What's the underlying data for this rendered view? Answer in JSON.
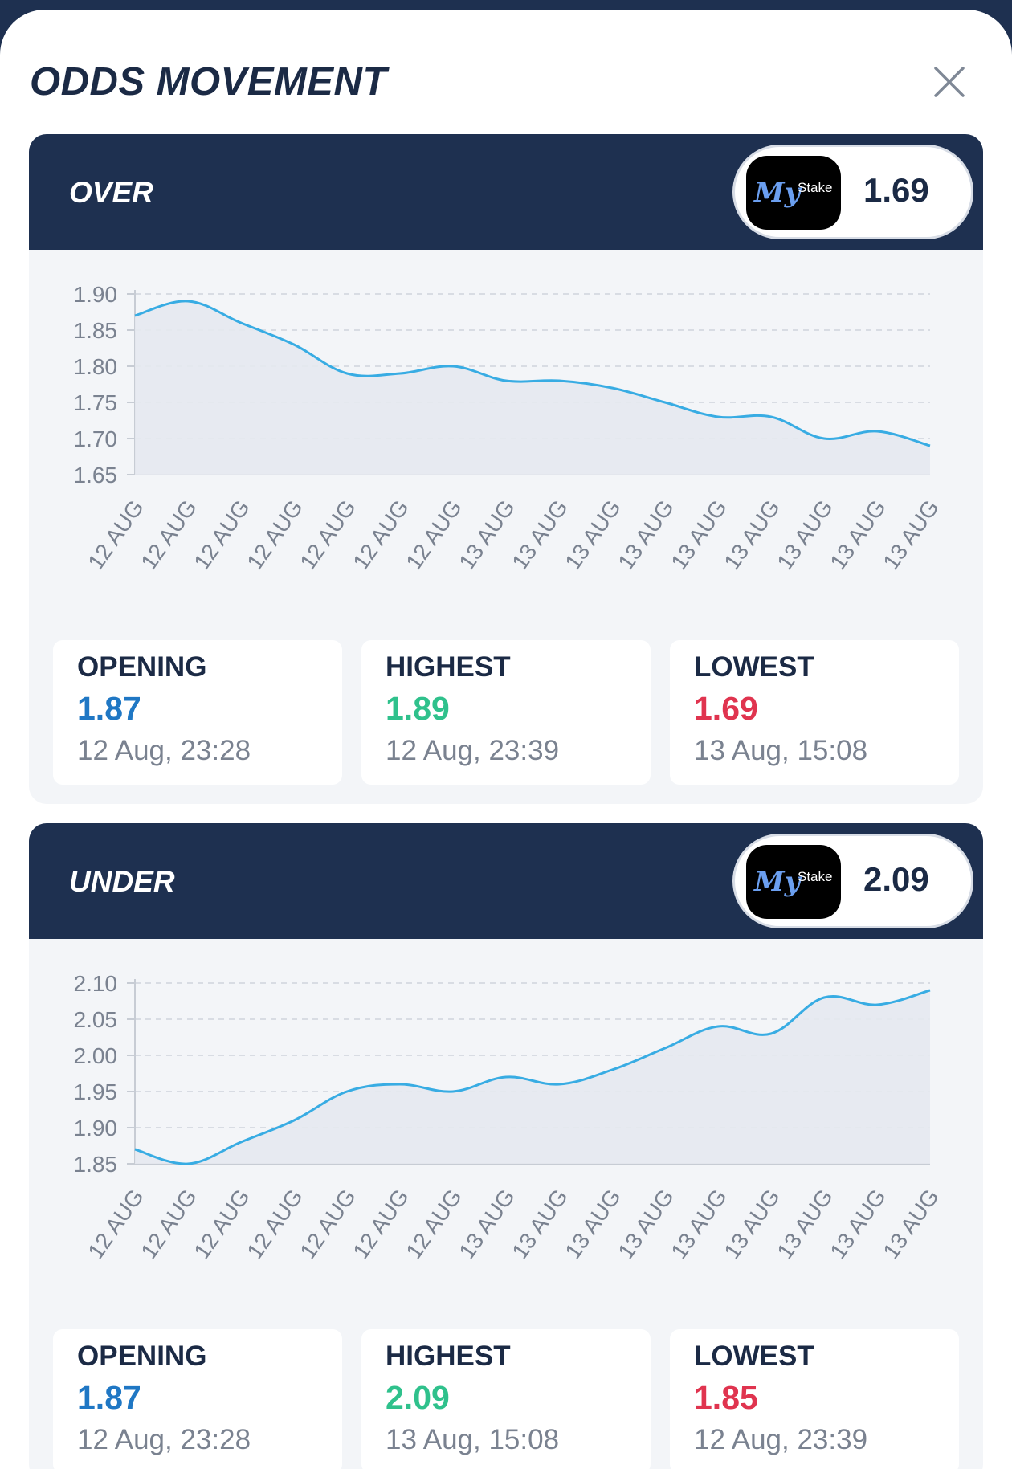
{
  "title": "ODDS MOVEMENT",
  "colors": {
    "navy": "#1e3050",
    "opening": "#1f77c4",
    "highest": "#2fc18c",
    "lowest": "#e0344f",
    "line": "#38ace3",
    "fill": "#e6e9f0"
  },
  "bookmaker": {
    "logo_text": "MyStake",
    "logo_main": "My",
    "logo_sub": "Stake"
  },
  "panels": [
    {
      "label": "OVER",
      "odds": "1.69",
      "stats": {
        "opening": {
          "label": "OPENING",
          "value": "1.87",
          "time": "12 Aug, 23:28"
        },
        "highest": {
          "label": "HIGHEST",
          "value": "1.89",
          "time": "12 Aug, 23:39"
        },
        "lowest": {
          "label": "LOWEST",
          "value": "1.69",
          "time": "13 Aug, 15:08"
        }
      }
    },
    {
      "label": "UNDER",
      "odds": "2.09",
      "stats": {
        "opening": {
          "label": "OPENING",
          "value": "1.87",
          "time": "12 Aug, 23:28"
        },
        "highest": {
          "label": "HIGHEST",
          "value": "2.09",
          "time": "13 Aug, 15:08"
        },
        "lowest": {
          "label": "LOWEST",
          "value": "1.85",
          "time": "12 Aug, 23:39"
        }
      }
    }
  ],
  "chart_data": [
    {
      "type": "area",
      "title": "",
      "xlabel": "",
      "ylabel": "",
      "grid": true,
      "ylim": [
        1.65,
        1.9
      ],
      "yticks": [
        "1.90",
        "1.85",
        "1.80",
        "1.75",
        "1.70",
        "1.65"
      ],
      "categories": [
        "12 AUG",
        "12 AUG",
        "12 AUG",
        "12 AUG",
        "12 AUG",
        "12 AUG",
        "12 AUG",
        "13 AUG",
        "13 AUG",
        "13 AUG",
        "13 AUG",
        "13 AUG",
        "13 AUG",
        "13 AUG",
        "13 AUG",
        "13 AUG"
      ],
      "values": [
        1.87,
        1.89,
        1.86,
        1.83,
        1.79,
        1.79,
        1.8,
        1.78,
        1.78,
        1.77,
        1.75,
        1.73,
        1.73,
        1.7,
        1.71,
        1.69
      ]
    },
    {
      "type": "area",
      "title": "",
      "xlabel": "",
      "ylabel": "",
      "grid": true,
      "ylim": [
        1.85,
        2.1
      ],
      "yticks": [
        "2.10",
        "2.05",
        "2.00",
        "1.95",
        "1.90",
        "1.85"
      ],
      "categories": [
        "12 AUG",
        "12 AUG",
        "12 AUG",
        "12 AUG",
        "12 AUG",
        "12 AUG",
        "12 AUG",
        "13 AUG",
        "13 AUG",
        "13 AUG",
        "13 AUG",
        "13 AUG",
        "13 AUG",
        "13 AUG",
        "13 AUG",
        "13 AUG"
      ],
      "values": [
        1.87,
        1.85,
        1.88,
        1.91,
        1.95,
        1.96,
        1.95,
        1.97,
        1.96,
        1.98,
        2.01,
        2.04,
        2.03,
        2.08,
        2.07,
        2.09
      ]
    }
  ]
}
